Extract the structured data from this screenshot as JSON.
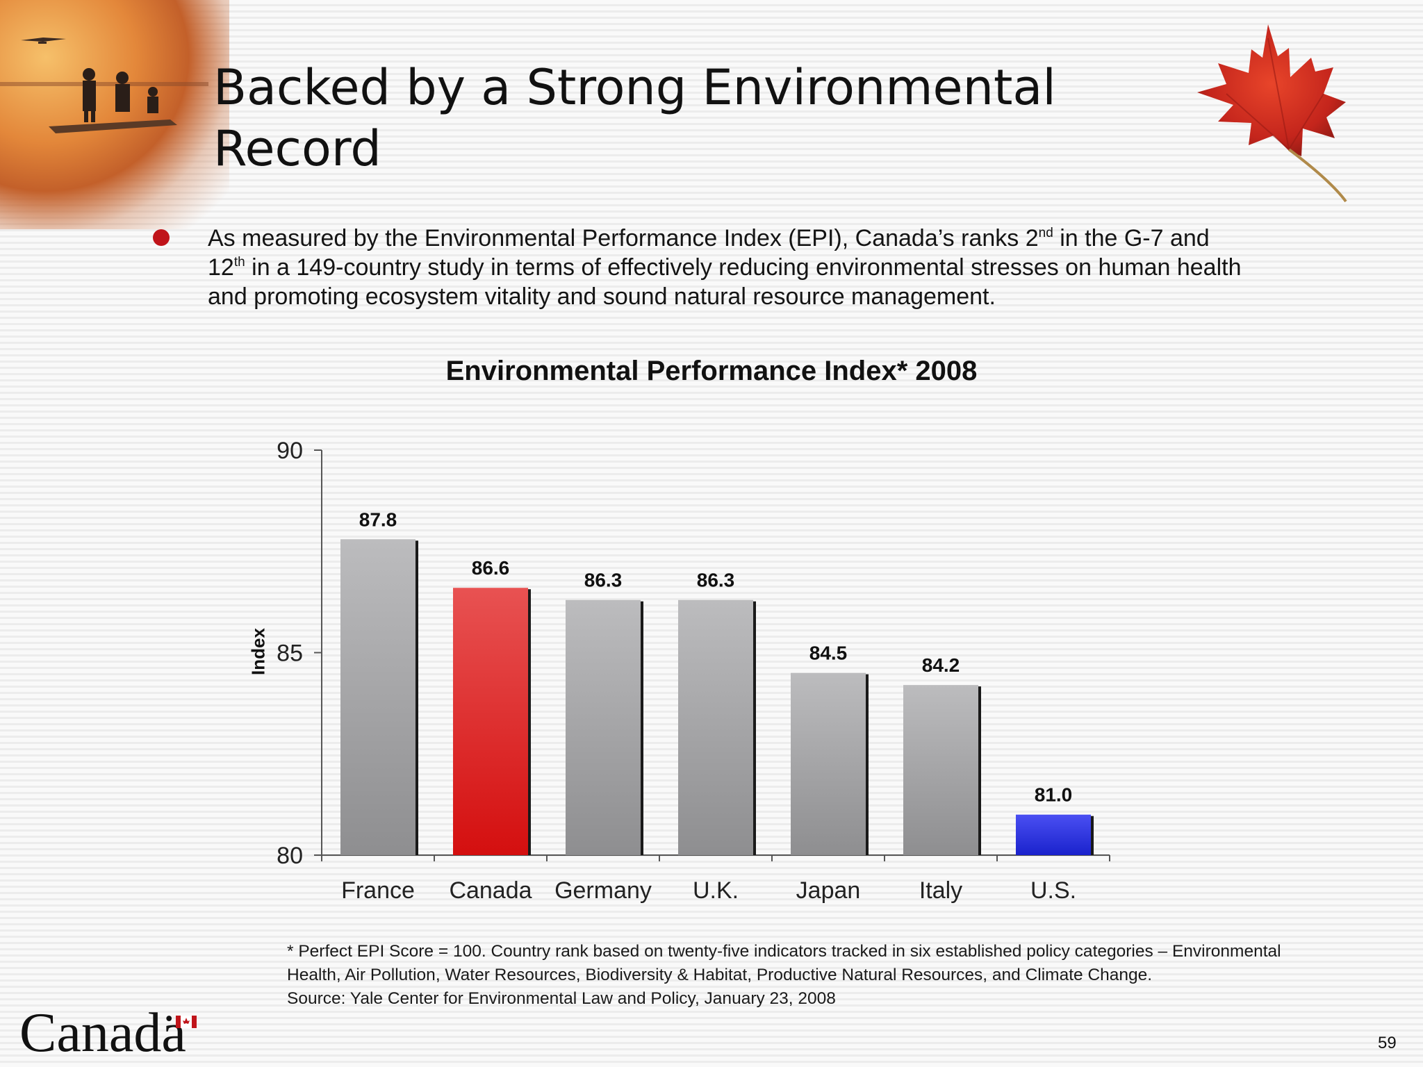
{
  "slide": {
    "title_line1": "Backed by a Strong Environmental",
    "title_line2": "Record",
    "bullet": {
      "part1": "As measured by the Environmental Performance Index (EPI), Canada’s ranks 2",
      "sup1": "nd",
      "part2": " in the G-7 and 12",
      "sup2": "th",
      "part3": " in a 149-country study in terms of effectively reducing environmental stresses on human health and promoting ecosystem vitality and sound natural resource management."
    },
    "footnote": {
      "line1": "* Perfect EPI Score = 100.  Country rank based on twenty-five indicators tracked in six established policy categories – Environmental",
      "line2": "Health, Air Pollution, Water Resources, Biodiversity & Habitat, Productive Natural Resources,  and Climate Change.",
      "line3": "Source: Yale Center for Environmental Law and Policy, January 23, 2008"
    },
    "logo_text": "Canadä",
    "page_number": "59"
  },
  "icons": {
    "corner": "landscape-photo-icon",
    "leaf": "maple-leaf-icon",
    "flag": "canada-flag-icon"
  },
  "colors": {
    "bullet": "#c0141a",
    "highlight_bar": "#dc1e1e",
    "us_bar": "#2a30d8",
    "default_bar": "#a8a8aa"
  },
  "chart_data": {
    "type": "bar",
    "title": "Environmental Performance Index* 2008",
    "ylabel": "Index",
    "xlabel": "",
    "categories": [
      "France",
      "Canada",
      "Germany",
      "U.K.",
      "Japan",
      "Italy",
      "U.S."
    ],
    "values": [
      87.8,
      86.6,
      86.3,
      86.3,
      84.5,
      84.2,
      81.0
    ],
    "value_labels": [
      "87.8",
      "86.6",
      "86.3",
      "86.3",
      "84.5",
      "84.2",
      "81.0"
    ],
    "bar_colors": [
      "gray",
      "red",
      "gray",
      "gray",
      "gray",
      "gray",
      "blue"
    ],
    "ylim": [
      80,
      90
    ],
    "yticks": [
      80,
      85,
      90
    ],
    "ytick_labels": [
      "80",
      "85",
      "90"
    ],
    "grid": false,
    "legend": "none"
  }
}
